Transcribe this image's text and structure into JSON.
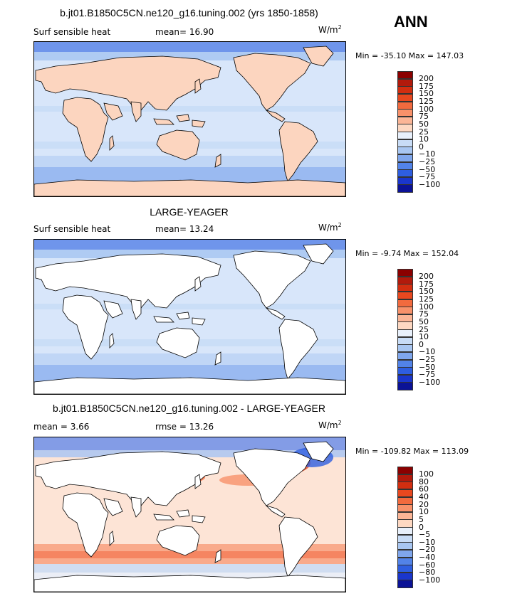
{
  "season": "ANN",
  "panels": [
    {
      "title": "b.jt01.B1850C5CN.ne120_g16.tuning.002 (yrs 1850-1858)",
      "variable": "Surf sensible heat",
      "stat1_label": "mean=",
      "stat1_value": "16.90",
      "stat2_label": "",
      "stat2_value": "",
      "units": "W/m",
      "units_exp": "2",
      "min_label": "Min =",
      "min_value": "-35.10",
      "max_label": "Max =",
      "max_value": "147.03",
      "land_filled": true,
      "colorbar_labels": [
        "200",
        "175",
        "150",
        "125",
        "100",
        "75",
        "50",
        "25",
        "10",
        "0",
        "−10",
        "−25",
        "−50",
        "−75",
        "−100"
      ],
      "colorbar_colors": [
        "#8b0000",
        "#b21a0c",
        "#d22e10",
        "#e8481f",
        "#f26a3e",
        "#f8916a",
        "#fbb596",
        "#fdd8c2",
        "#e8f0fb",
        "#c8dcf6",
        "#a8c6f1",
        "#7fa6ec",
        "#5283e8",
        "#2e5ee0",
        "#1a36cc",
        "#0b1296"
      ]
    },
    {
      "title": "LARGE-YEAGER",
      "variable": "Surf sensible heat",
      "stat1_label": "mean=",
      "stat1_value": "13.24",
      "stat2_label": "",
      "stat2_value": "",
      "units": "W/m",
      "units_exp": "2",
      "min_label": "Min =",
      "min_value": "-9.74",
      "max_label": "Max =",
      "max_value": "152.04",
      "land_filled": false,
      "colorbar_labels": [
        "200",
        "175",
        "150",
        "125",
        "100",
        "75",
        "50",
        "25",
        "10",
        "0",
        "−10",
        "−25",
        "−50",
        "−75",
        "−100"
      ],
      "colorbar_colors": [
        "#8b0000",
        "#b21a0c",
        "#d22e10",
        "#e8481f",
        "#f26a3e",
        "#f8916a",
        "#fbb596",
        "#fdd8c2",
        "#e8f0fb",
        "#c8dcf6",
        "#a8c6f1",
        "#7fa6ec",
        "#5283e8",
        "#2e5ee0",
        "#1a36cc",
        "#0b1296"
      ]
    },
    {
      "title": "b.jt01.B1850C5CN.ne120_g16.tuning.002 - LARGE-YEAGER",
      "variable": "",
      "stat1_label": "mean =",
      "stat1_value": "3.66",
      "stat2_label": "rmse =",
      "stat2_value": "13.26",
      "units": "W/m",
      "units_exp": "2",
      "min_label": "Min =",
      "min_value": "-109.82",
      "max_label": "Max =",
      "max_value": "113.09",
      "land_filled": false,
      "colorbar_labels": [
        "100",
        "80",
        "60",
        "40",
        "20",
        "10",
        "5",
        "0",
        "−5",
        "−10",
        "−20",
        "−40",
        "−60",
        "−80",
        "−100"
      ],
      "colorbar_colors": [
        "#8b0000",
        "#b21a0c",
        "#d22e10",
        "#e8481f",
        "#f26a3e",
        "#f8916a",
        "#fbb596",
        "#fdd8c2",
        "#e8f0fb",
        "#c8dcf6",
        "#a8c6f1",
        "#7fa6ec",
        "#5283e8",
        "#2e5ee0",
        "#1a36cc",
        "#0b1296"
      ]
    }
  ],
  "chart_data": [
    {
      "type": "heatmap",
      "title": "b.jt01.B1850C5CN.ne120_g16.tuning.002 (yrs 1850-1858)",
      "field": "Surf sensible heat",
      "units": "W/m2",
      "mean": 16.9,
      "min": -35.1,
      "max": 147.03,
      "contour_levels": [
        -100,
        -75,
        -50,
        -25,
        -10,
        0,
        10,
        25,
        50,
        75,
        100,
        125,
        150,
        175,
        200
      ]
    },
    {
      "type": "heatmap",
      "title": "LARGE-YEAGER",
      "field": "Surf sensible heat",
      "units": "W/m2",
      "mean": 13.24,
      "min": -9.74,
      "max": 152.04,
      "contour_levels": [
        -100,
        -75,
        -50,
        -25,
        -10,
        0,
        10,
        25,
        50,
        75,
        100,
        125,
        150,
        175,
        200
      ]
    },
    {
      "type": "heatmap",
      "title": "b.jt01.B1850C5CN.ne120_g16.tuning.002 - LARGE-YEAGER",
      "units": "W/m2",
      "mean": 3.66,
      "rmse": 13.26,
      "min": -109.82,
      "max": 113.09,
      "contour_levels": [
        -100,
        -80,
        -60,
        -40,
        -20,
        -10,
        -5,
        0,
        5,
        10,
        20,
        40,
        60,
        80,
        100
      ]
    }
  ]
}
